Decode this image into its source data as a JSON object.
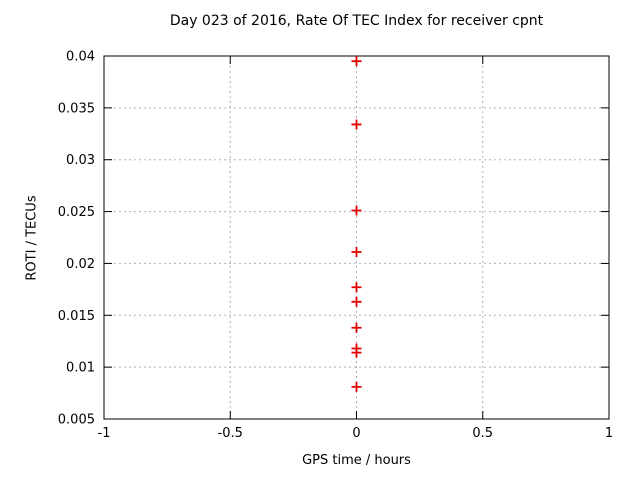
{
  "window": {
    "background_color": "#ffffff"
  },
  "chart_data": {
    "type": "scatter",
    "title": "Day 023 of 2016, Rate Of TEC Index for receiver cpnt",
    "xlabel": "GPS time / hours",
    "ylabel": "ROTI / TECUs",
    "xlim": [
      -1,
      1
    ],
    "ylim": [
      0.005,
      0.04
    ],
    "xticks": [
      -1,
      -0.5,
      0,
      0.5,
      1
    ],
    "xtick_labels": [
      "-1",
      "-0.5",
      "0",
      "0.5",
      "1"
    ],
    "yticks": [
      0.005,
      0.01,
      0.015,
      0.02,
      0.025,
      0.03,
      0.035,
      0.04
    ],
    "ytick_labels": [
      "0.005",
      "0.01",
      "0.015",
      "0.02",
      "0.025",
      "0.03",
      "0.035",
      "0.04"
    ],
    "grid": true,
    "legend": "none",
    "series": [
      {
        "name": "ROTI",
        "marker": "plus",
        "x": [
          0,
          0,
          0,
          0,
          0,
          0,
          0,
          0,
          0,
          0
        ],
        "y": [
          0.0395,
          0.0334,
          0.0251,
          0.0211,
          0.0177,
          0.0163,
          0.0138,
          0.0118,
          0.0114,
          0.0081
        ]
      }
    ],
    "colors": {
      "marker": "#e60000",
      "grid": "#b0b0b0",
      "border": "#000000",
      "text": "#000000"
    }
  }
}
